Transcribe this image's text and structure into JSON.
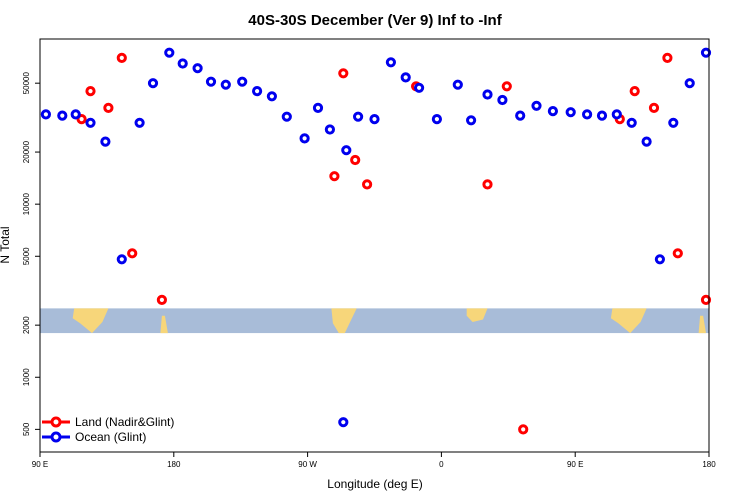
{
  "chart_data": {
    "type": "scatter",
    "title": "40S-30S December (Ver 9)   Inf to -Inf",
    "xlabel": "Longitude (deg E)",
    "ylabel": "N Total",
    "x_scale": "longitude, 90 E to 180 (wrapping, 450 degrees)",
    "y_scale": "log",
    "xlim": [
      90,
      540
    ],
    "ylim": [
      370,
      90000
    ],
    "x_ticks": [
      {
        "value": 90,
        "label": "90 E"
      },
      {
        "value": 180,
        "label": "180"
      },
      {
        "value": 270,
        "label": "90 W"
      },
      {
        "value": 360,
        "label": "0"
      },
      {
        "value": 450,
        "label": "90 E"
      },
      {
        "value": 540,
        "label": "180"
      }
    ],
    "y_ticks": [
      {
        "value": 500,
        "label": "500"
      },
      {
        "value": 1000,
        "label": "1000"
      },
      {
        "value": 2000,
        "label": "2000"
      },
      {
        "value": 5000,
        "label": "5000"
      },
      {
        "value": 10000,
        "label": "10000"
      },
      {
        "value": 20000,
        "label": "20000"
      },
      {
        "value": 50000,
        "label": "50000"
      }
    ],
    "map_band": {
      "y_range": [
        1800,
        2500
      ],
      "ocean_color": "#a8bcd8",
      "land_color": "#f7d67a"
    },
    "legend_position": "bottom-left",
    "series": [
      {
        "name": "Land (Nadir&Glint)",
        "color": "#ff0000",
        "points": [
          [
            118,
            31000
          ],
          [
            124,
            45000
          ],
          [
            136,
            36000
          ],
          [
            145,
            70000
          ],
          [
            152,
            5200
          ],
          [
            172,
            2800
          ],
          [
            288,
            14500
          ],
          [
            294,
            57000
          ],
          [
            302,
            18000
          ],
          [
            310,
            13000
          ],
          [
            343,
            48000
          ],
          [
            391,
            13000
          ],
          [
            404,
            48000
          ],
          [
            415,
            500
          ],
          [
            480,
            31000
          ],
          [
            490,
            45000
          ],
          [
            503,
            36000
          ],
          [
            512,
            70000
          ],
          [
            519,
            5200
          ],
          [
            538,
            2800
          ]
        ]
      },
      {
        "name": "Ocean (Glint)",
        "color": "#0000ee",
        "points": [
          [
            94,
            33000
          ],
          [
            105,
            32500
          ],
          [
            114,
            33000
          ],
          [
            124,
            29500
          ],
          [
            134,
            23000
          ],
          [
            145,
            4800
          ],
          [
            157,
            29500
          ],
          [
            166,
            50000
          ],
          [
            177,
            75000
          ],
          [
            186,
            65000
          ],
          [
            196,
            61000
          ],
          [
            205,
            51000
          ],
          [
            215,
            49000
          ],
          [
            226,
            51000
          ],
          [
            236,
            45000
          ],
          [
            246,
            42000
          ],
          [
            256,
            32000
          ],
          [
            268,
            24000
          ],
          [
            277,
            36000
          ],
          [
            285,
            27000
          ],
          [
            294,
            550
          ],
          [
            296,
            20500
          ],
          [
            304,
            32000
          ],
          [
            315,
            31000
          ],
          [
            326,
            66000
          ],
          [
            336,
            54000
          ],
          [
            345,
            47000
          ],
          [
            357,
            31000
          ],
          [
            371,
            49000
          ],
          [
            380,
            30500
          ],
          [
            391,
            43000
          ],
          [
            401,
            40000
          ],
          [
            413,
            32500
          ],
          [
            424,
            37000
          ],
          [
            435,
            34500
          ],
          [
            447,
            34000
          ],
          [
            458,
            33000
          ],
          [
            468,
            32500
          ],
          [
            478,
            33000
          ],
          [
            488,
            29500
          ],
          [
            498,
            23000
          ],
          [
            507,
            4800
          ],
          [
            516,
            29500
          ],
          [
            527,
            50000
          ],
          [
            538,
            75000
          ]
        ]
      }
    ]
  }
}
